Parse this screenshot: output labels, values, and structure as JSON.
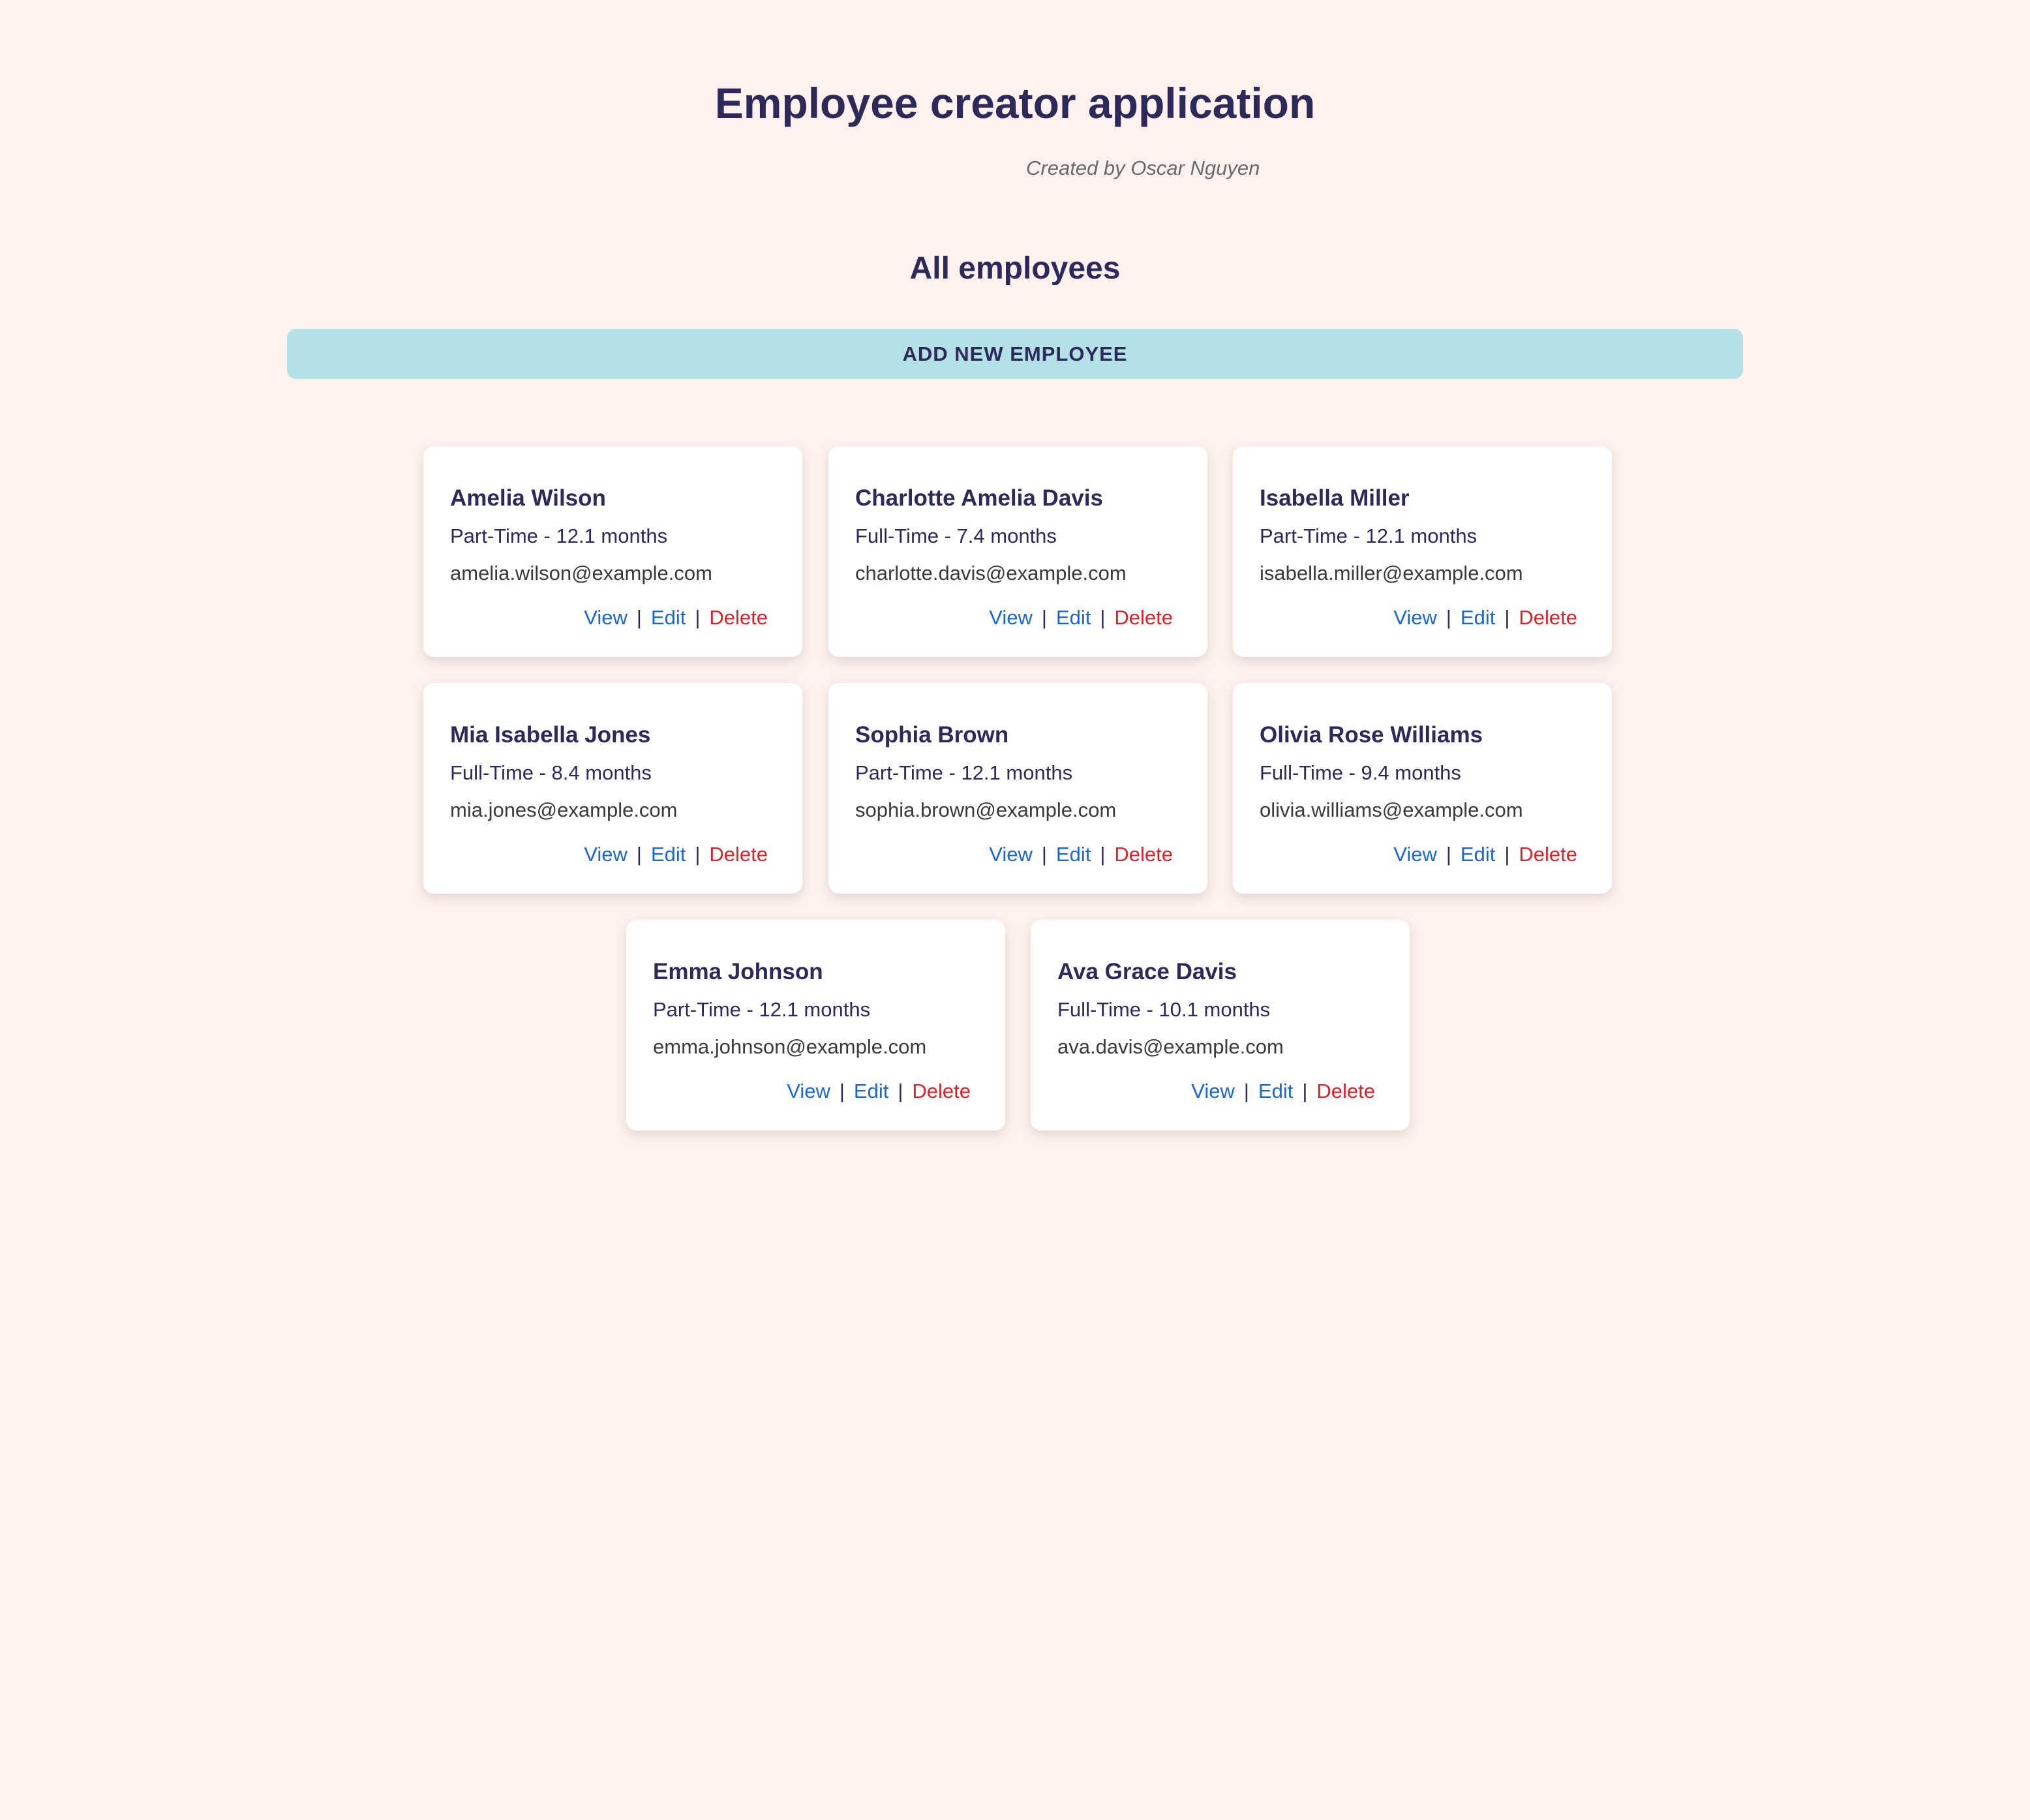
{
  "header": {
    "title": "Employee creator application",
    "byline": "Created by Oscar Nguyen"
  },
  "main": {
    "section_title": "All employees",
    "add_button_label": "ADD NEW EMPLOYEE",
    "action_labels": {
      "view": "View",
      "edit": "Edit",
      "delete": "Delete",
      "separator": "|"
    },
    "employees": [
      {
        "name": "Amelia Wilson",
        "summary": "Part-Time - 12.1 months",
        "email": "amelia.wilson@example.com"
      },
      {
        "name": "Charlotte Amelia Davis",
        "summary": "Full-Time - 7.4 months",
        "email": "charlotte.davis@example.com"
      },
      {
        "name": "Isabella Miller",
        "summary": "Part-Time - 12.1 months",
        "email": "isabella.miller@example.com"
      },
      {
        "name": "Mia Isabella Jones",
        "summary": "Full-Time - 8.4 months",
        "email": "mia.jones@example.com"
      },
      {
        "name": "Sophia Brown",
        "summary": "Part-Time - 12.1 months",
        "email": "sophia.brown@example.com"
      },
      {
        "name": "Olivia Rose Williams",
        "summary": "Full-Time - 9.4 months",
        "email": "olivia.williams@example.com"
      },
      {
        "name": "Emma Johnson",
        "summary": "Part-Time - 12.1 months",
        "email": "emma.johnson@example.com"
      },
      {
        "name": "Ava Grace Davis",
        "summary": "Full-Time - 10.1 months",
        "email": "ava.davis@example.com"
      }
    ]
  },
  "colors": {
    "background": "#fff1ed",
    "heading": "#2d2a5a",
    "add_button_bg": "#b3e1e6",
    "link": "#1a66d2",
    "delete": "#d8232a"
  }
}
